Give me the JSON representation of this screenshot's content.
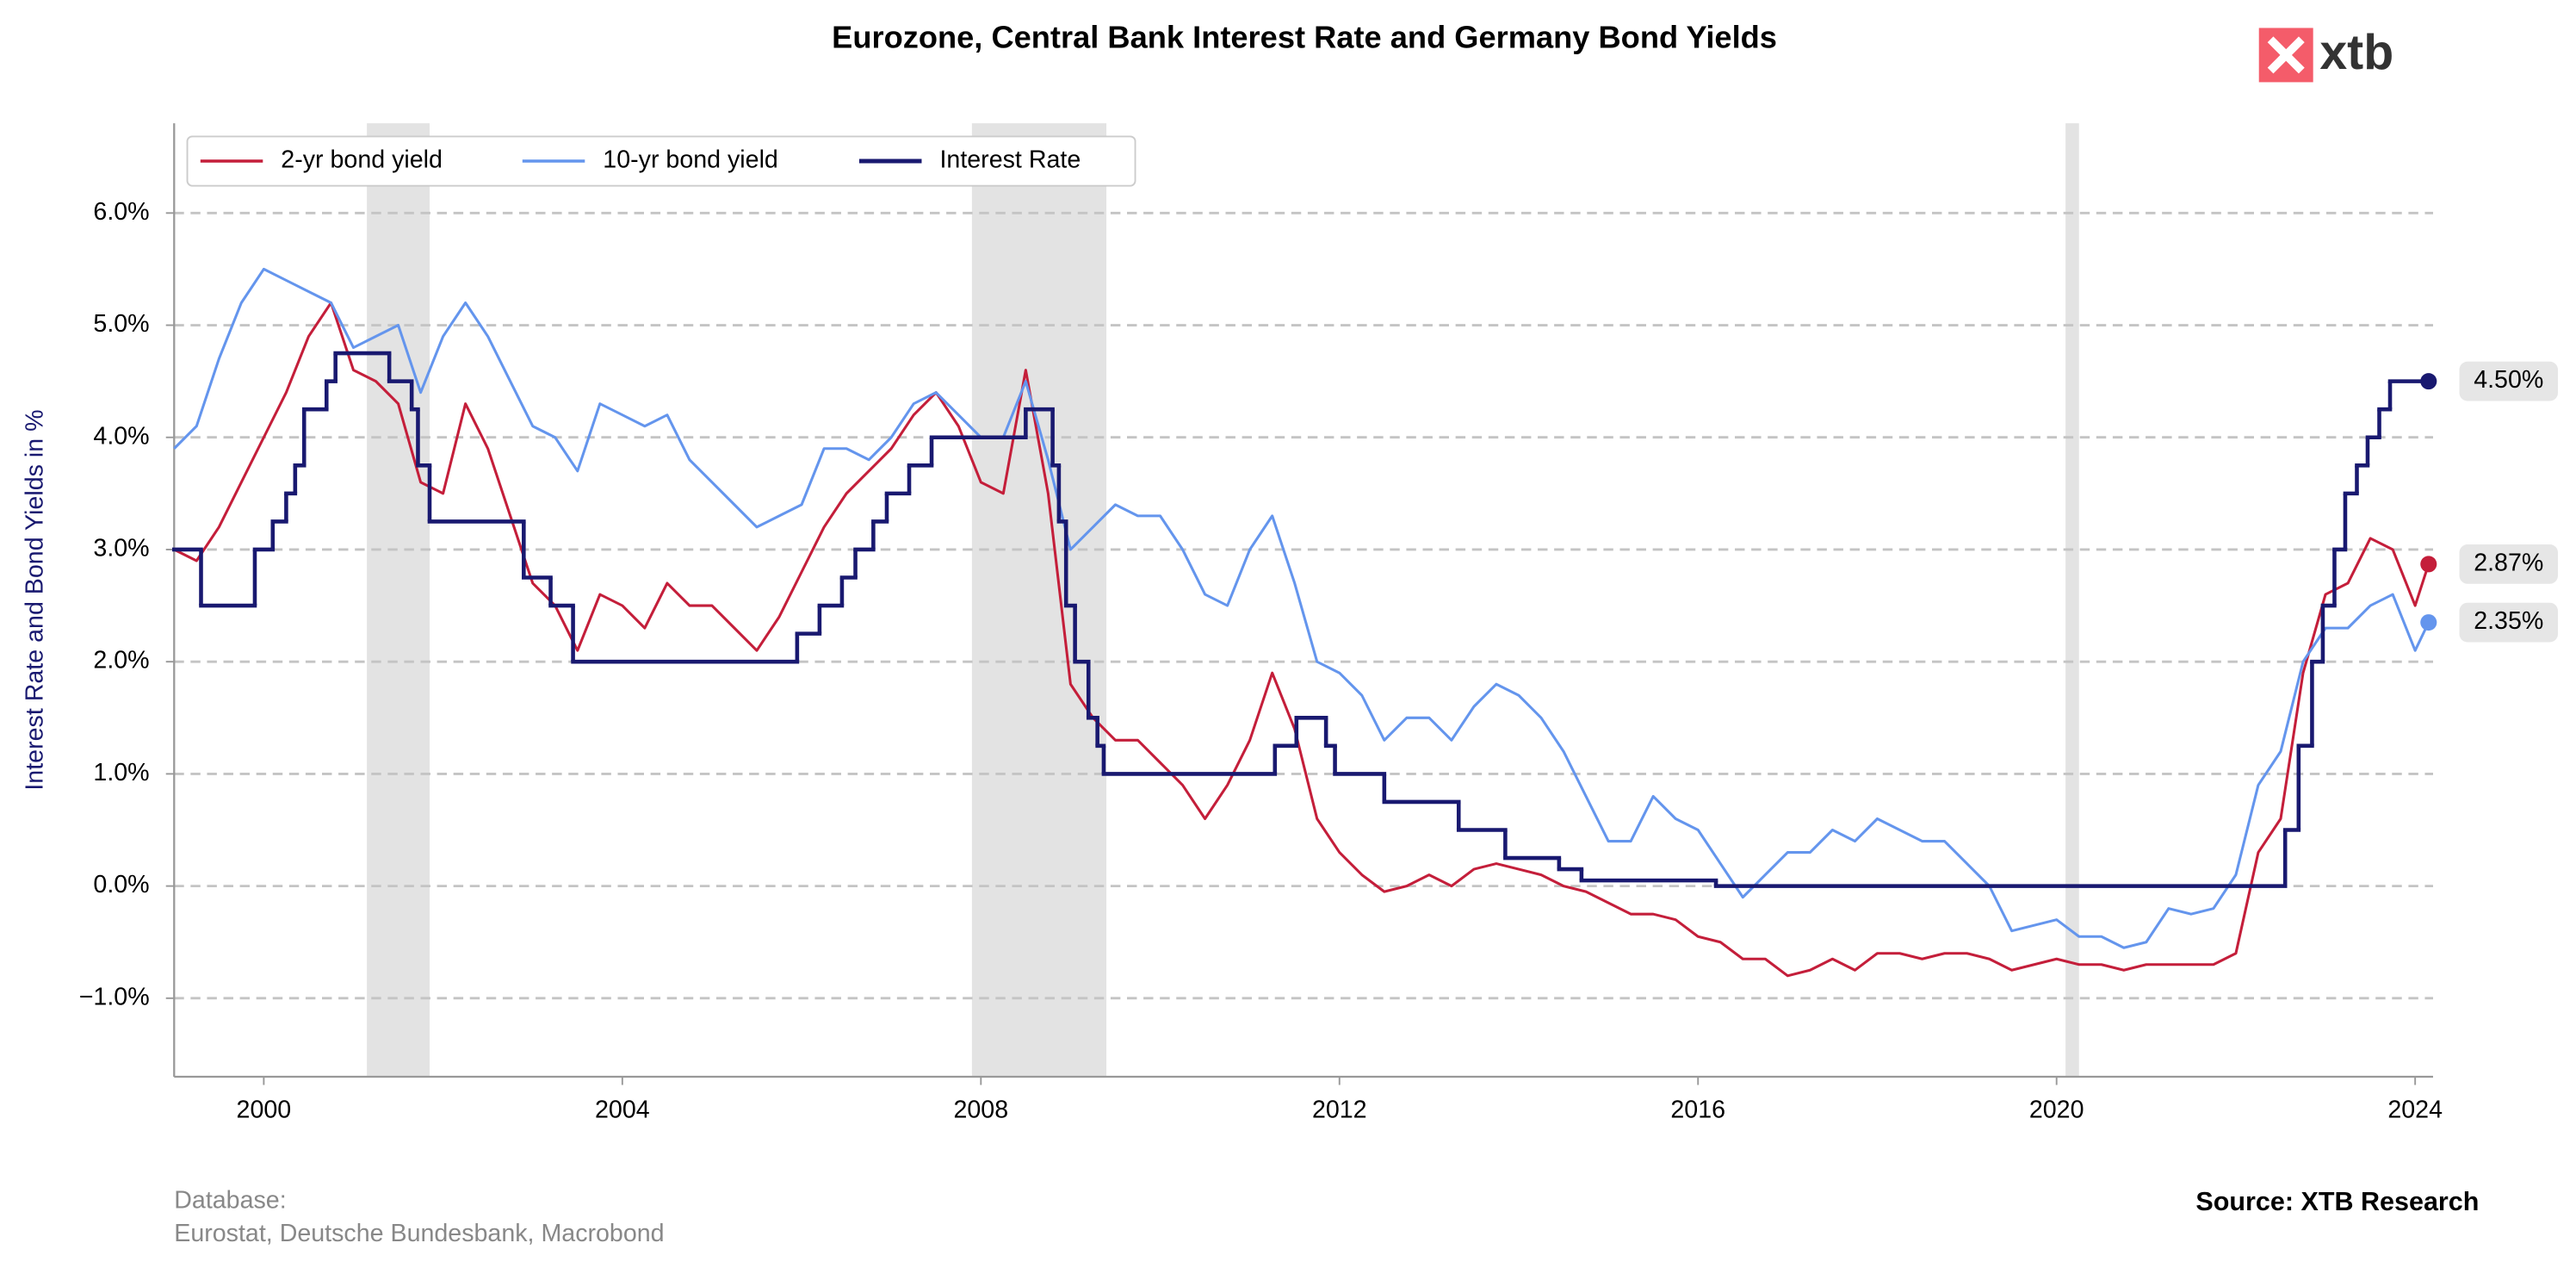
{
  "chart_data": {
    "type": "line",
    "title": "Eurozone, Central Bank Interest Rate and Germany Bond Yields",
    "y_label": "Interest Rate and Bond Yields in %",
    "logo": "xtb",
    "database_label": "Database:",
    "database": "Eurostat, Deutsche Bundesbank, Macrobond",
    "source": "Source: XTB Research",
    "legend": "upper left",
    "grid": true,
    "xlim": [
      1999.0,
      2024.2
    ],
    "ylim": [
      -1.7,
      6.8
    ],
    "xticks": [
      2000,
      2004,
      2008,
      2012,
      2016,
      2020,
      2024
    ],
    "yticks": [
      {
        "value": -1,
        "label": "−1.0%"
      },
      {
        "value": 0,
        "label": "0.0%"
      },
      {
        "value": 1,
        "label": "1.0%"
      },
      {
        "value": 2,
        "label": "2.0%"
      },
      {
        "value": 3,
        "label": "3.0%"
      },
      {
        "value": 4,
        "label": "4.0%"
      },
      {
        "value": 5,
        "label": "5.0%"
      },
      {
        "value": 6,
        "label": "6.0%"
      }
    ],
    "shaded_periods": [
      [
        2001.15,
        2001.85
      ],
      [
        2007.9,
        2009.4
      ],
      [
        2020.1,
        2020.25
      ]
    ],
    "shade_color": "#e3e3e3",
    "x": [
      1999.0,
      1999.25,
      1999.5,
      1999.75,
      2000.0,
      2000.25,
      2000.5,
      2000.75,
      2001.0,
      2001.25,
      2001.5,
      2001.75,
      2002.0,
      2002.25,
      2002.5,
      2002.75,
      2003.0,
      2003.25,
      2003.5,
      2003.75,
      2004.0,
      2004.25,
      2004.5,
      2004.75,
      2005.0,
      2005.25,
      2005.5,
      2005.75,
      2006.0,
      2006.25,
      2006.5,
      2006.75,
      2007.0,
      2007.25,
      2007.5,
      2007.75,
      2008.0,
      2008.25,
      2008.5,
      2008.75,
      2009.0,
      2009.25,
      2009.5,
      2009.75,
      2010.0,
      2010.25,
      2010.5,
      2010.75,
      2011.0,
      2011.25,
      2011.5,
      2011.75,
      2012.0,
      2012.25,
      2012.5,
      2012.75,
      2013.0,
      2013.25,
      2013.5,
      2013.75,
      2014.0,
      2014.25,
      2014.5,
      2014.75,
      2015.0,
      2015.25,
      2015.5,
      2015.75,
      2016.0,
      2016.25,
      2016.5,
      2016.75,
      2017.0,
      2017.25,
      2017.5,
      2017.75,
      2018.0,
      2018.25,
      2018.5,
      2018.75,
      2019.0,
      2019.25,
      2019.5,
      2019.75,
      2020.0,
      2020.25,
      2020.5,
      2020.75,
      2021.0,
      2021.25,
      2021.5,
      2021.75,
      2022.0,
      2022.25,
      2022.5,
      2022.75,
      2023.0,
      2023.25,
      2023.5,
      2023.75,
      2024.0,
      2024.15
    ],
    "series": [
      {
        "name": "2-yr bond yield",
        "color": "#c41e3a",
        "end_label": "2.87%",
        "values": [
          3.0,
          2.9,
          3.2,
          3.6,
          4.0,
          4.4,
          4.9,
          5.2,
          4.6,
          4.5,
          4.3,
          3.6,
          3.5,
          4.3,
          3.9,
          3.3,
          2.7,
          2.5,
          2.1,
          2.6,
          2.5,
          2.3,
          2.7,
          2.5,
          2.5,
          2.3,
          2.1,
          2.4,
          2.8,
          3.2,
          3.5,
          3.7,
          3.9,
          4.2,
          4.4,
          4.1,
          3.6,
          3.5,
          4.6,
          3.5,
          1.8,
          1.5,
          1.3,
          1.3,
          1.1,
          0.9,
          0.6,
          0.9,
          1.3,
          1.9,
          1.4,
          0.6,
          0.3,
          0.1,
          -0.05,
          0.0,
          0.1,
          0.0,
          0.15,
          0.2,
          0.15,
          0.1,
          0.0,
          -0.05,
          -0.15,
          -0.25,
          -0.25,
          -0.3,
          -0.45,
          -0.5,
          -0.65,
          -0.65,
          -0.8,
          -0.75,
          -0.65,
          -0.75,
          -0.6,
          -0.6,
          -0.65,
          -0.6,
          -0.6,
          -0.65,
          -0.75,
          -0.7,
          -0.65,
          -0.7,
          -0.7,
          -0.75,
          -0.7,
          -0.7,
          -0.7,
          -0.7,
          -0.6,
          0.3,
          0.6,
          1.9,
          2.6,
          2.7,
          3.1,
          3.0,
          2.5,
          2.87
        ]
      },
      {
        "name": "10-yr bond yield",
        "color": "#6495ed",
        "end_label": "2.35%",
        "values": [
          3.9,
          4.1,
          4.7,
          5.2,
          5.5,
          5.4,
          5.3,
          5.2,
          4.8,
          4.9,
          5.0,
          4.4,
          4.9,
          5.2,
          4.9,
          4.5,
          4.1,
          4.0,
          3.7,
          4.3,
          4.2,
          4.1,
          4.2,
          3.8,
          3.6,
          3.4,
          3.2,
          3.3,
          3.4,
          3.9,
          3.9,
          3.8,
          4.0,
          4.3,
          4.4,
          4.2,
          4.0,
          4.0,
          4.5,
          3.8,
          3.0,
          3.2,
          3.4,
          3.3,
          3.3,
          3.0,
          2.6,
          2.5,
          3.0,
          3.3,
          2.7,
          2.0,
          1.9,
          1.7,
          1.3,
          1.5,
          1.5,
          1.3,
          1.6,
          1.8,
          1.7,
          1.5,
          1.2,
          0.8,
          0.4,
          0.4,
          0.8,
          0.6,
          0.5,
          0.2,
          -0.1,
          0.1,
          0.3,
          0.3,
          0.5,
          0.4,
          0.6,
          0.5,
          0.4,
          0.4,
          0.2,
          0.0,
          -0.4,
          -0.35,
          -0.3,
          -0.45,
          -0.45,
          -0.55,
          -0.5,
          -0.2,
          -0.25,
          -0.2,
          0.1,
          0.9,
          1.2,
          2.0,
          2.3,
          2.3,
          2.5,
          2.6,
          2.1,
          2.35
        ]
      },
      {
        "name": "Interest Rate",
        "color": "#191970",
        "step": true,
        "end_label": "4.50%",
        "x": [
          1999.0,
          1999.3,
          1999.9,
          2000.1,
          2000.25,
          2000.35,
          2000.45,
          2000.7,
          2000.8,
          2001.4,
          2001.65,
          2001.72,
          2001.85,
          2002.9,
          2003.2,
          2003.45,
          2005.95,
          2006.2,
          2006.45,
          2006.6,
          2006.8,
          2006.95,
          2007.2,
          2007.45,
          2008.5,
          2008.8,
          2008.87,
          2008.95,
          2009.05,
          2009.2,
          2009.3,
          2009.37,
          2011.28,
          2011.52,
          2011.85,
          2011.95,
          2012.5,
          2013.33,
          2013.85,
          2014.45,
          2014.7,
          2016.2,
          2022.55,
          2022.7,
          2022.85,
          2022.97,
          2023.1,
          2023.22,
          2023.35,
          2023.47,
          2023.6,
          2023.72,
          2024.15
        ],
        "values": [
          3.0,
          2.5,
          3.0,
          3.25,
          3.5,
          3.75,
          4.25,
          4.5,
          4.75,
          4.5,
          4.25,
          3.75,
          3.25,
          2.75,
          2.5,
          2.0,
          2.25,
          2.5,
          2.75,
          3.0,
          3.25,
          3.5,
          3.75,
          4.0,
          4.25,
          3.75,
          3.25,
          2.5,
          2.0,
          1.5,
          1.25,
          1.0,
          1.25,
          1.5,
          1.25,
          1.0,
          0.75,
          0.5,
          0.25,
          0.15,
          0.05,
          0.0,
          0.5,
          1.25,
          2.0,
          2.5,
          3.0,
          3.5,
          3.75,
          4.0,
          4.25,
          4.5,
          4.5
        ]
      }
    ]
  }
}
